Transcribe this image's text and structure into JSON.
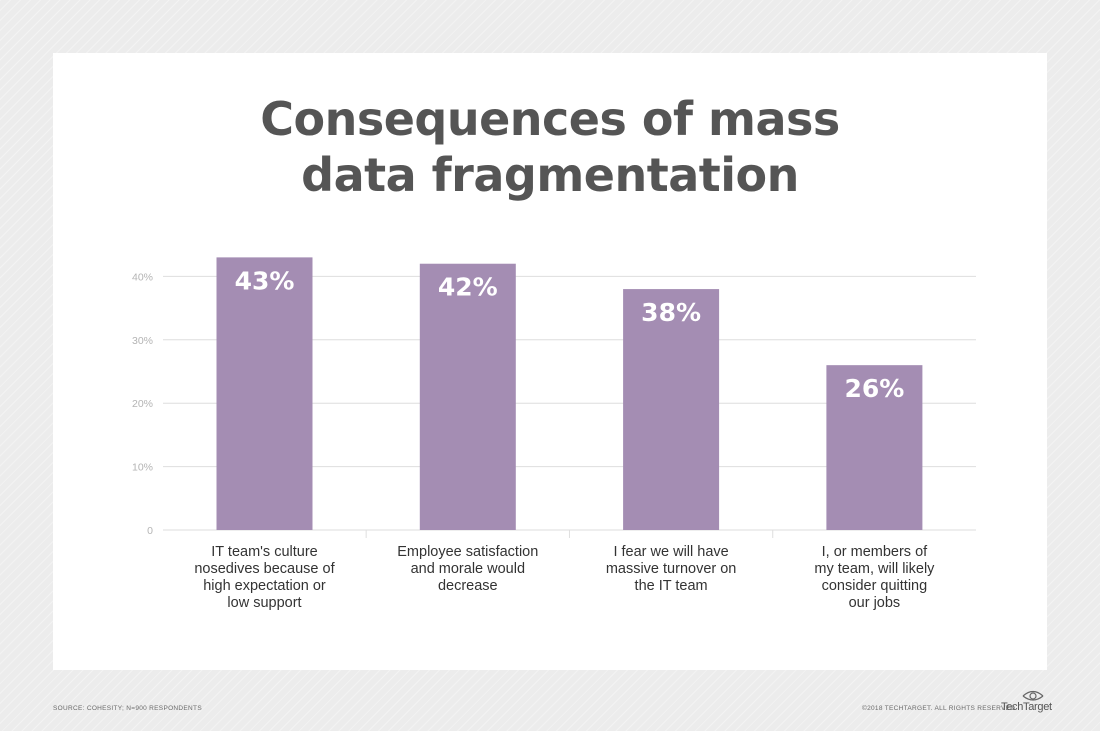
{
  "title_lines": [
    "Consequences of mass",
    "data fragmentation"
  ],
  "chart_data": {
    "type": "bar",
    "categories": [
      [
        "IT team's culture",
        "nosedives because of",
        "high expectation or",
        "low support"
      ],
      [
        "Employee satisfaction",
        "and morale would",
        "decrease"
      ],
      [
        "I fear we will have",
        "massive turnover on",
        "the IT team"
      ],
      [
        "I, or members of",
        "my team, will likely",
        "consider quitting",
        "our jobs"
      ]
    ],
    "values": [
      43,
      42,
      38,
      26
    ],
    "data_labels": [
      "43%",
      "42%",
      "38%",
      "26%"
    ],
    "yticks": [
      0,
      10,
      20,
      30,
      40
    ],
    "ytick_labels": [
      "0",
      "10%",
      "20%",
      "30%",
      "40%"
    ],
    "ylim": [
      0,
      43
    ],
    "grid": true,
    "bar_color": "#a48db3",
    "grid_color": "#dedede"
  },
  "footer": {
    "source": "SOURCE: COHESITY; N=900 RESPONDENTS",
    "copyright": "©2018 TECHTARGET. ALL RIGHTS RESERVED",
    "logo_text": "TechTarget"
  }
}
